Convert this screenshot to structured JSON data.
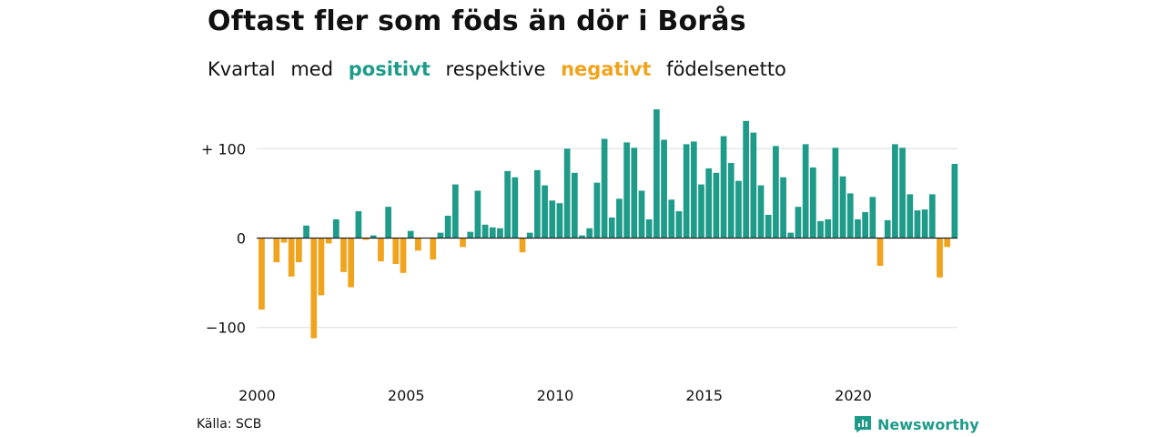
{
  "title": "Oftast fler som föds än dör i Borås",
  "subtitle": {
    "parts": [
      "Kvartal",
      "med",
      "positivt",
      "respektive",
      "negativt",
      "födelsenetto"
    ]
  },
  "source": "Källa: SCB",
  "brand": "Newsworthy",
  "colors": {
    "positive": "#1f9b8a",
    "negative": "#f0a31c",
    "grid": "#dddddd",
    "zero": "#222222"
  },
  "chart_data": {
    "type": "bar",
    "xlabel": "",
    "ylabel": "",
    "ylim": [
      -120,
      150
    ],
    "yticks": [
      {
        "value": 100,
        "label": "+ 100"
      },
      {
        "value": 0,
        "label": "0"
      },
      {
        "value": -100,
        "label": "−100"
      }
    ],
    "xticks": [
      {
        "value": 2000,
        "label": "2000"
      },
      {
        "value": 2005,
        "label": "2005"
      },
      {
        "value": 2010,
        "label": "2010"
      },
      {
        "value": 2015,
        "label": "2015"
      },
      {
        "value": 2020,
        "label": "2020"
      }
    ],
    "grid": true,
    "series": [
      {
        "start": "2000 Q1",
        "values": [
          -80,
          0,
          -27,
          -5,
          -43,
          -27,
          14,
          -112,
          -64,
          -6,
          21,
          -38,
          -55,
          30,
          -2,
          3,
          -26,
          35,
          -29,
          -39,
          8,
          -14,
          0,
          -24,
          6,
          25,
          60,
          -10,
          7,
          53,
          15,
          12,
          11,
          75,
          68,
          -16,
          6,
          76,
          59,
          42,
          39,
          100,
          73,
          3,
          11,
          62,
          111,
          23,
          44,
          107,
          101,
          53,
          21,
          144,
          110,
          43,
          30,
          105,
          108,
          60,
          78,
          73,
          114,
          84,
          64,
          131,
          118,
          59,
          26,
          103,
          68,
          6,
          35,
          105,
          79,
          19,
          21,
          101,
          69,
          50,
          21,
          29,
          46,
          -31,
          20,
          105,
          101,
          49,
          31,
          32,
          49,
          -44,
          -10,
          83
        ]
      }
    ]
  }
}
